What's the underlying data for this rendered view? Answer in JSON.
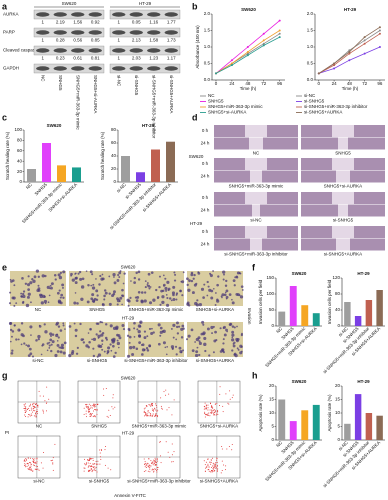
{
  "a": {
    "letter": "a",
    "groups": [
      "SW620",
      "HT-29"
    ],
    "proteins": [
      "AURKA",
      "PARP",
      "Cleaved caspase",
      "GAPDH"
    ],
    "lanes": [
      [
        "NC",
        "SNHG5",
        "SNHG5+miR-363-3p mimic",
        "SNHG5+si-AURKA"
      ],
      [
        "si-NC",
        "si-SNHG5",
        "si-SNHG5+miR-363-3p inhibitor",
        "si-SNHG5+AURKA"
      ]
    ],
    "ratios": [
      [
        [
          1,
          2.19,
          1.56,
          0.92
        ],
        [
          1,
          0.05,
          1.16,
          1.77
        ]
      ],
      [
        [
          1,
          0.28,
          0.56,
          0.85
        ],
        [
          1,
          2.13,
          1.58,
          1.73
        ]
      ],
      [
        [
          1,
          0.23,
          0.61,
          0.81
        ],
        [
          1,
          2.03,
          1.23,
          1.17
        ]
      ]
    ]
  },
  "b": {
    "letter": "b",
    "ylabel": "Absorbance (450 nm)",
    "xlabel": "Time (h)",
    "charts": [
      {
        "type": "line",
        "title": "SW620",
        "x": [
          0,
          24,
          48,
          72,
          96
        ],
        "xlim": [
          -6,
          104
        ],
        "xticks": [
          0,
          24,
          48,
          72,
          96
        ],
        "ylim": [
          0,
          2
        ],
        "yticks": [
          {
            "value": 0,
            "label": "0.0"
          },
          0.5,
          {
            "value": 1,
            "label": "1.0"
          },
          1.5,
          {
            "value": 2,
            "label": "2.0"
          }
        ],
        "series": [
          {
            "name": "NC",
            "color": "#8a8a8a",
            "values": [
              0.2,
              0.5,
              0.8,
              1.1,
              1.4
            ]
          },
          {
            "name": "SNHG5",
            "color": "#e91ee0",
            "values": [
              0.2,
              0.6,
              1.0,
              1.4,
              1.8
            ]
          },
          {
            "name": "SNHG5+miR-363-3p mimic",
            "color": "#f0a030",
            "values": [
              0.2,
              0.5,
              0.85,
              1.2,
              1.5
            ]
          },
          {
            "name": "SNHG5+si-AURKA",
            "color": "#2a9d8f",
            "values": [
              0.2,
              0.45,
              0.75,
              1.05,
              1.3
            ]
          }
        ]
      },
      {
        "type": "line",
        "title": "HT-29",
        "x": [
          0,
          24,
          48,
          72,
          96
        ],
        "xlim": [
          -6,
          104
        ],
        "xticks": [
          0,
          24,
          48,
          72,
          96
        ],
        "ylim": [
          0,
          2
        ],
        "yticks": [
          {
            "value": 0,
            "label": "0.0"
          },
          0.5,
          {
            "value": 1,
            "label": "1.0"
          },
          1.5,
          {
            "value": 2,
            "label": "2.0"
          }
        ],
        "series": [
          {
            "name": "si-NC",
            "color": "#8a8a8a",
            "values": [
              0.2,
              0.5,
              0.9,
              1.2,
              1.5
            ]
          },
          {
            "name": "si-SNHG5",
            "color": "#7b3fe4",
            "values": [
              0.2,
              0.35,
              0.6,
              0.8,
              1.0
            ]
          },
          {
            "name": "si-SNHG5+miR-363-3p inhibitor",
            "color": "#c06050",
            "values": [
              0.2,
              0.45,
              0.8,
              1.1,
              1.4
            ]
          },
          {
            "name": "si-SNHG5+AURKA",
            "color": "#8b6b55",
            "values": [
              0.2,
              0.5,
              0.85,
              1.3,
              1.6
            ]
          }
        ]
      }
    ]
  },
  "c": {
    "letter": "c",
    "ylabel": "Scratch healing rate (%)",
    "charts": [
      {
        "type": "bar",
        "title": "SW620",
        "categories": [
          "NC",
          "SNHG5",
          "SNHG5+miR-363-3p mimic",
          "SNHG5+si-AURKA"
        ],
        "values": [
          25,
          75,
          32,
          28
        ],
        "colors": [
          "#9e9e9e",
          "#e040fb",
          "#f5a623",
          "#1a9e8f"
        ],
        "ylim": [
          0,
          100
        ],
        "yticks": [
          0,
          20,
          40,
          60,
          80,
          100
        ]
      },
      {
        "type": "bar",
        "title": "HT-29",
        "categories": [
          "si-NC",
          "si-SNHG5",
          "si-SNHG5+miR-363-3p inhibitor",
          "si-SNHG5+AURKA"
        ],
        "values": [
          40,
          15,
          50,
          62
        ],
        "colors": [
          "#9e9e9e",
          "#7b3fe4",
          "#c06050",
          "#8b6b55"
        ],
        "ylim": [
          0,
          80
        ],
        "yticks": [
          0,
          20,
          40,
          60,
          80
        ]
      }
    ]
  },
  "d": {
    "letter": "d",
    "times": [
      "0 h",
      "24 h"
    ],
    "groups": [
      "SW620",
      "HT-29"
    ],
    "captions": [
      [
        "NC",
        "SNHG5",
        "SNHG5+miR-363-3p mimic",
        "SNHG5+si-AURKA"
      ],
      [
        "si-NC",
        "si-SNHG5",
        "si-SNHG5+miR-363-3p inhibitor",
        "si-SNHG5+AURKA"
      ]
    ]
  },
  "e": {
    "letter": "e",
    "groups": [
      "SW620",
      "HT-29"
    ],
    "side": "Invasion",
    "captions": [
      [
        "NC",
        "SNHG5",
        "SNHG5+miR-363-3p mimic",
        "SNHG5+si-AURKA"
      ],
      [
        "si-NC",
        "si-SNHG5",
        "si-SNHG5+miR-363-3p inhibitor",
        "si-SNHG5+AURKA"
      ]
    ]
  },
  "f": {
    "letter": "f",
    "ylabel": "Invasion cells per field",
    "charts": [
      {
        "type": "bar",
        "title": "SW620",
        "categories": [
          "NC",
          "SNHG5",
          "SNHG5+miR-363-3p mimic",
          "SNHG5+si-AURKA"
        ],
        "values": [
          45,
          125,
          65,
          40
        ],
        "colors": [
          "#9e9e9e",
          "#e040fb",
          "#f5a623",
          "#1a9e8f"
        ],
        "ylim": [
          0,
          150
        ],
        "yticks": [
          0,
          50,
          100,
          150
        ]
      },
      {
        "type": "bar",
        "title": "HT-29",
        "categories": [
          "si-NC",
          "si-SNHG5",
          "si-SNHG5+miR-363-3p inhibitor",
          "si-SNHG5+AURKA"
        ],
        "values": [
          60,
          25,
          65,
          90
        ],
        "colors": [
          "#9e9e9e",
          "#7b3fe4",
          "#c06050",
          "#8b6b55"
        ],
        "ylim": [
          0,
          120
        ],
        "yticks": [
          0,
          40,
          80,
          120
        ]
      }
    ]
  },
  "g": {
    "letter": "g",
    "groups": [
      "SW620",
      "HT-29"
    ],
    "ylabel": "PI",
    "xlabel": "Annexin V-FITC",
    "captions": [
      [
        "NC",
        "SNHG5",
        "SNHG5+miR-363-3p mimic",
        "SNHG5+si-AURKA"
      ],
      [
        "si-NC",
        "si-SNHG5",
        "si-SNHG5+miR-363-3p inhibitor",
        "si-SNHG5+AURKA"
      ]
    ]
  },
  "h": {
    "letter": "h",
    "ylabel": "Apoptosis rate (%)",
    "charts": [
      {
        "type": "bar",
        "title": "SW620",
        "categories": [
          "NC",
          "SNHG5",
          "SNHG5+miR-363-3p mimic",
          "SNHG5+si-AURKA"
        ],
        "values": [
          15,
          7,
          11,
          13
        ],
        "colors": [
          "#9e9e9e",
          "#e040fb",
          "#f5a623",
          "#1a9e8f"
        ],
        "ylim": [
          0,
          20
        ],
        "yticks": [
          0,
          5,
          10,
          15,
          20
        ]
      },
      {
        "type": "bar",
        "title": "HT-29",
        "categories": [
          "si-NC",
          "si-SNHG5",
          "si-SNHG5+miR-363-3p inhibitor",
          "si-SNHG5+AURKA"
        ],
        "values": [
          6,
          17,
          10,
          9
        ],
        "colors": [
          "#9e9e9e",
          "#7b3fe4",
          "#c06050",
          "#8b6b55"
        ],
        "ylim": [
          0,
          20
        ],
        "yticks": [
          0,
          5,
          10,
          15,
          20
        ]
      }
    ]
  }
}
